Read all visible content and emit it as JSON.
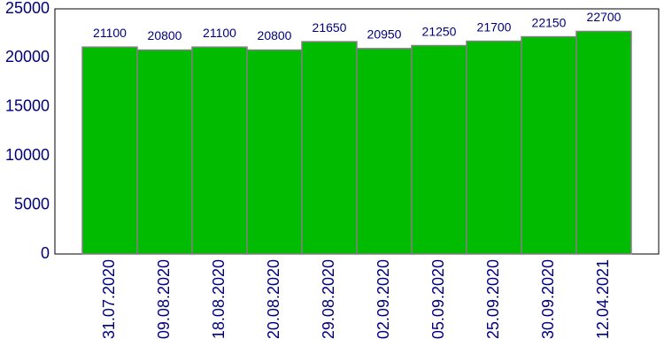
{
  "chart_data": {
    "type": "bar",
    "categories": [
      "31.07.2020",
      "09.08.2020",
      "18.08.2020",
      "20.08.2020",
      "29.08.2020",
      "02.09.2020",
      "05.09.2020",
      "25.09.2020",
      "30.09.2020",
      "12.04.2021"
    ],
    "values": [
      21100,
      20800,
      21100,
      20800,
      21650,
      20950,
      21250,
      21700,
      22150,
      22700
    ],
    "color": "#00bb00",
    "ylim": [
      0,
      25000
    ],
    "yticks": [
      0,
      5000,
      10000,
      15000,
      20000,
      25000
    ],
    "grid": false
  }
}
